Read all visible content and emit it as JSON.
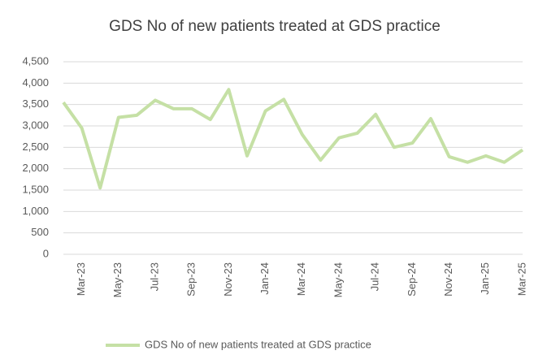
{
  "chart_data": {
    "type": "line",
    "title": "GDS No of new patients treated at GDS practice",
    "categories": [
      null,
      "Mar-23",
      null,
      "May-23",
      null,
      "Jul-23",
      null,
      "Sep-23",
      null,
      "Nov-23",
      null,
      "Jan-24",
      null,
      "Mar-24",
      null,
      "May-24",
      null,
      "Jul-24",
      null,
      "Sep-24",
      null,
      "Nov-24",
      null,
      "Jan-25",
      null,
      "Mar-25"
    ],
    "series": [
      {
        "name": "GDS No of new patients treated at GDS practice",
        "color": "#c5e0a5",
        "values": [
          3550,
          2950,
          1550,
          3200,
          3250,
          3600,
          3400,
          3400,
          3150,
          3850,
          2300,
          3350,
          3620,
          2800,
          2200,
          2720,
          2830,
          3270,
          2500,
          2600,
          3170,
          2280,
          2150,
          2300,
          2150,
          2440
        ]
      }
    ],
    "ylim": [
      0,
      4500
    ],
    "yticks": [
      0,
      500,
      {
        "value": 1000,
        "label": "1,000"
      },
      {
        "value": 1500,
        "label": "1,500"
      },
      {
        "value": 2000,
        "label": "2,000"
      },
      {
        "value": 2500,
        "label": "2,500"
      },
      {
        "value": 3000,
        "label": "3,000"
      },
      {
        "value": 3500,
        "label": "3,500"
      },
      {
        "value": 4000,
        "label": "4,000"
      },
      {
        "value": 4500,
        "label": "4,500"
      }
    ],
    "grid": true,
    "legend": "bottom"
  }
}
